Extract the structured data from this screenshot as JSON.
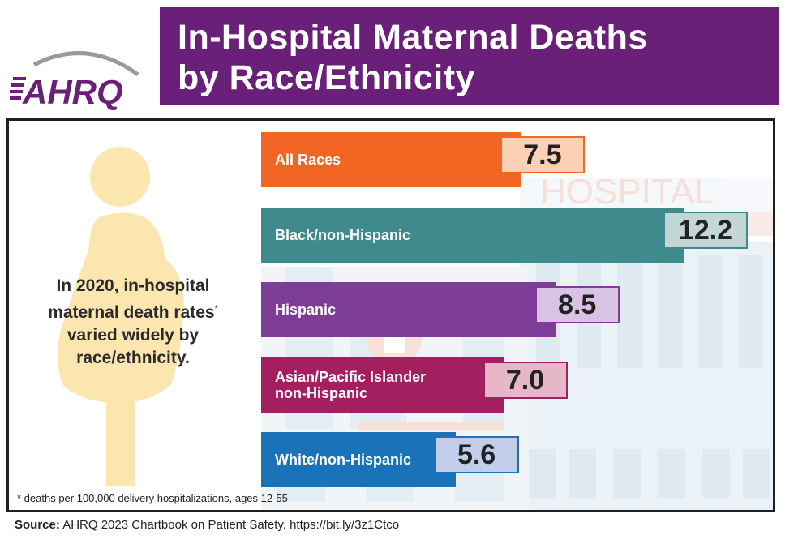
{
  "logo": {
    "text": "AHRQ"
  },
  "title": {
    "line1": "In-Hospital Maternal Deaths",
    "line2": "by Race/Ethnicity"
  },
  "caption": {
    "text": "In 2020, in-hospital maternal death rates",
    "marker": "*",
    "text2": "varied widely by race/ethnicity."
  },
  "background": {
    "sign_text": "HOSPITAL"
  },
  "footnote": "* deaths per 100,000 delivery hospitalizations, ages 12-55",
  "source": {
    "label": "Source:",
    "text": " AHRQ 2023 Chartbook on Patient Safety. https://bit.ly/3z1Ctco"
  },
  "colors": {
    "banner": "#6a1f78",
    "figure": "#fbe6b0",
    "hospital": "#dce8f1"
  },
  "chart_data": {
    "type": "bar",
    "orientation": "horizontal",
    "categories": [
      "All Races",
      "Black/non-Hispanic",
      "Hispanic",
      "Asian/Pacific Islander\nnon-Hispanic",
      "White/non-Hispanic"
    ],
    "values": [
      7.5,
      12.2,
      8.5,
      7.0,
      5.6
    ],
    "value_labels": [
      "7.5",
      "12.2",
      "8.5",
      "7.0",
      "5.6"
    ],
    "bar_colors": [
      "#f26522",
      "#3e8a8c",
      "#7d3c98",
      "#a31f5f",
      "#1a73b8"
    ],
    "box_fill": [
      "#fbd0b5",
      "#c3d6d6",
      "#d9c2e4",
      "#e6b7c9",
      "#c1cde9"
    ],
    "box_border": [
      "#f26522",
      "#3e8a8c",
      "#7d3c98",
      "#a31f5f",
      "#1a73b8"
    ],
    "title": "In-Hospital Maternal Deaths by Race/Ethnicity",
    "xlabel": "",
    "ylabel": "",
    "xlim": [
      0,
      12.2
    ],
    "grid": false,
    "legend": "none"
  }
}
